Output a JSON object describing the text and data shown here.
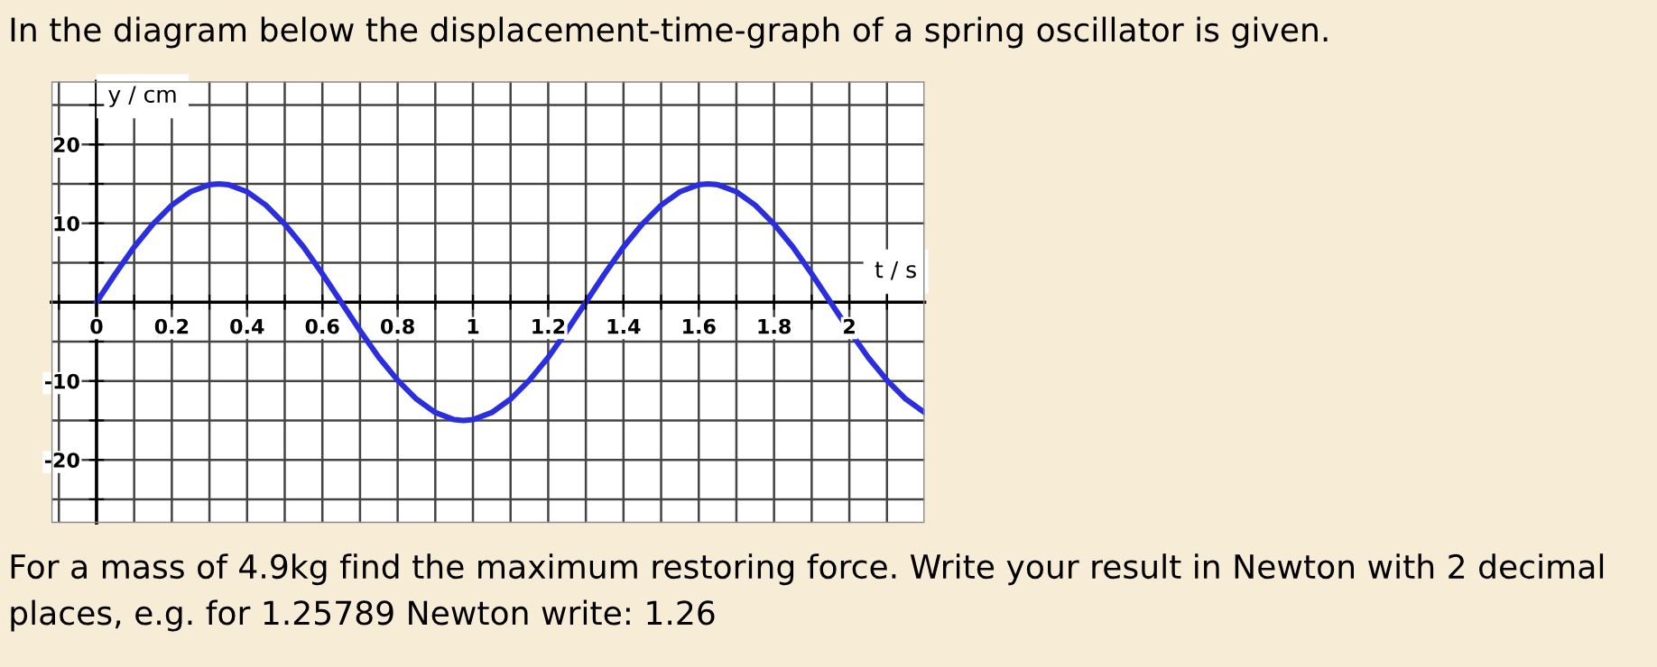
{
  "chart_data": {
    "type": "line",
    "title": "In the diagram below the displacement-time-graph of a spring oscillator is given.",
    "xlabel": "t / s",
    "ylabel": "y / cm",
    "annotations": [
      "For a mass of 4.9kg find the maximum restoring force. Write your result in Newton with 2 decimal places, e.g. for 1.25789 Newton write: 1.26"
    ],
    "x": [
      0,
      0.05,
      0.1,
      0.15,
      0.2,
      0.25,
      0.3,
      0.325,
      0.35,
      0.4,
      0.45,
      0.5,
      0.55,
      0.6,
      0.65,
      0.7,
      0.75,
      0.8,
      0.85,
      0.9,
      0.95,
      0.975,
      1.0,
      1.05,
      1.1,
      1.15,
      1.2,
      1.25,
      1.3,
      1.35,
      1.4,
      1.45,
      1.5,
      1.55,
      1.6,
      1.625,
      1.65,
      1.7,
      1.75,
      1.8,
      1.85,
      1.9,
      1.95,
      2.0,
      2.05,
      2.1,
      2.15,
      2.2
    ],
    "series": [
      {
        "color": "#2a2ee0",
        "values": [
          0,
          3.6,
          7.0,
          9.9,
          12.3,
          14.0,
          14.9,
          15,
          14.9,
          14.0,
          12.3,
          9.9,
          7.0,
          3.6,
          0,
          -3.6,
          -7.0,
          -9.9,
          -12.3,
          -14.0,
          -14.9,
          -15,
          -14.9,
          -14.0,
          -12.3,
          -9.9,
          -7.0,
          -3.6,
          0,
          3.6,
          7.0,
          9.9,
          12.3,
          14.0,
          14.9,
          15,
          14.9,
          14.0,
          12.3,
          9.9,
          7.0,
          3.6,
          0,
          -3.6,
          -7.0,
          -9.9,
          -12.3,
          -14.0
        ]
      }
    ],
    "xlim": [
      -0.12,
      2.2
    ],
    "ylim": [
      -28,
      28
    ],
    "xticks": [
      {
        "value": -0.1,
        "label": null
      },
      0,
      {
        "value": 0.1,
        "label": null
      },
      0.2,
      {
        "value": 0.3,
        "label": null
      },
      0.4,
      {
        "value": 0.5,
        "label": null
      },
      0.6,
      {
        "value": 0.7,
        "label": null
      },
      0.8,
      {
        "value": 0.9,
        "label": null
      },
      1,
      {
        "value": 1.1,
        "label": null
      },
      1.2,
      {
        "value": 1.3,
        "label": null
      },
      1.4,
      {
        "value": 1.5,
        "label": null
      },
      1.6,
      {
        "value": 1.7,
        "label": null
      },
      1.8,
      {
        "value": 1.9,
        "label": null
      },
      2,
      {
        "value": 2.1,
        "label": null
      }
    ],
    "yticks": [
      {
        "value": -25,
        "label": null
      },
      -20,
      {
        "value": -15,
        "label": null
      },
      -10,
      {
        "value": -5,
        "label": null
      },
      {
        "value": 5,
        "label": null
      },
      10,
      {
        "value": 15,
        "label": null
      },
      20,
      {
        "value": 25,
        "label": null
      }
    ],
    "grid": true,
    "marker": "none",
    "line_style": "solid",
    "legend": false
  }
}
